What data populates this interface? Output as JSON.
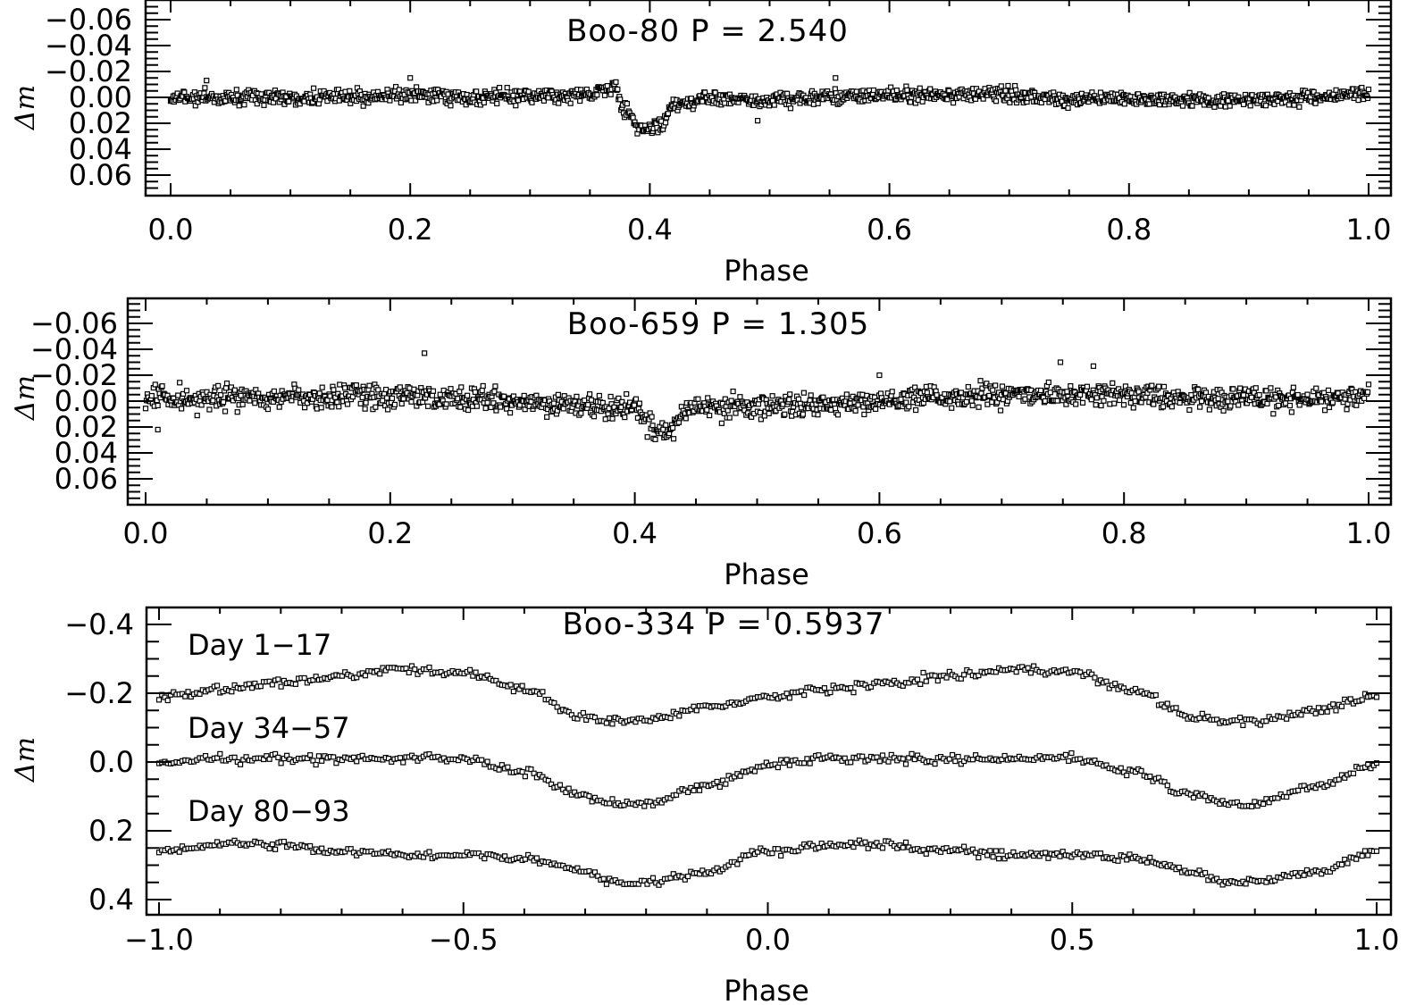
{
  "chart_data": [
    {
      "type": "scatter",
      "title": "Boo-80   P = 2.540",
      "star": "Boo-80",
      "period": "2.540",
      "xlabel": "Phase",
      "ylabel": "Δm",
      "xlim": [
        0.0,
        1.0
      ],
      "ylim": [
        -0.075,
        0.075
      ],
      "y_inverted": true,
      "xticks": [
        "0.0",
        "0.2",
        "0.4",
        "0.6",
        "0.8",
        "1.0"
      ],
      "yticks": [
        "−0.06",
        "−0.04",
        "−0.02",
        "0.00",
        "0.02",
        "0.04",
        "0.06"
      ],
      "marker": "open-square",
      "baseline": 0.0,
      "features": [
        {
          "type": "eclipse-dip",
          "phase_center": 0.395,
          "phase_width": 0.05,
          "depth": 0.025
        }
      ],
      "outliers": [
        {
          "x": 0.03,
          "y": -0.013
        },
        {
          "x": 0.2,
          "y": -0.015
        },
        {
          "x": 0.49,
          "y": 0.018
        },
        {
          "x": 0.555,
          "y": -0.015
        }
      ],
      "x": [
        0.0,
        0.05,
        0.1,
        0.15,
        0.2,
        0.25,
        0.3,
        0.35,
        0.37,
        0.38,
        0.39,
        0.4,
        0.41,
        0.42,
        0.45,
        0.5,
        0.55,
        0.6,
        0.65,
        0.7,
        0.75,
        0.8,
        0.85,
        0.9,
        0.95,
        1.0
      ],
      "y": [
        0.0,
        0.0,
        0.0,
        0.0,
        -0.002,
        0.0,
        -0.001,
        -0.002,
        -0.008,
        0.01,
        0.022,
        0.025,
        0.02,
        0.005,
        0.0,
        0.002,
        0.0,
        -0.002,
        -0.002,
        -0.002,
        0.002,
        0.001,
        0.002,
        0.002,
        0.0,
        -0.002
      ]
    },
    {
      "type": "scatter",
      "title": "Boo-659   P = 1.305",
      "star": "Boo-659",
      "period": "1.305",
      "xlabel": "Phase",
      "ylabel": "Δm",
      "xlim": [
        0.0,
        1.0
      ],
      "ylim": [
        -0.075,
        0.075
      ],
      "y_inverted": true,
      "xticks": [
        "0.0",
        "0.2",
        "0.4",
        "0.6",
        "0.8",
        "1.0"
      ],
      "yticks": [
        "−0.06",
        "−0.04",
        "−0.02",
        "0.00",
        "0.02",
        "0.04",
        "0.06"
      ],
      "marker": "open-square",
      "baseline": 0.0,
      "features": [
        {
          "type": "eclipse-dip",
          "phase_center": 0.425,
          "phase_width": 0.04,
          "depth": 0.025
        }
      ],
      "outliers": [
        {
          "x": 0.01,
          "y": 0.022
        },
        {
          "x": 0.228,
          "y": -0.037
        },
        {
          "x": 0.748,
          "y": -0.03
        },
        {
          "x": 0.775,
          "y": -0.027
        },
        {
          "x": 0.6,
          "y": -0.02
        }
      ],
      "x": [
        0.0,
        0.05,
        0.1,
        0.15,
        0.2,
        0.25,
        0.3,
        0.35,
        0.4,
        0.41,
        0.42,
        0.43,
        0.44,
        0.45,
        0.5,
        0.55,
        0.6,
        0.65,
        0.7,
        0.75,
        0.8,
        0.85,
        0.9,
        0.95,
        1.0
      ],
      "y": [
        -0.003,
        -0.002,
        -0.003,
        -0.003,
        -0.003,
        -0.002,
        0.0,
        0.002,
        0.006,
        0.015,
        0.025,
        0.02,
        0.008,
        0.004,
        0.005,
        0.003,
        0.0,
        -0.003,
        -0.005,
        -0.005,
        -0.004,
        -0.003,
        -0.002,
        -0.002,
        -0.003
      ]
    },
    {
      "type": "scatter",
      "title": "Boo-334   P = 0.5937",
      "star": "Boo-334",
      "period": "0.5937",
      "xlabel": "Phase",
      "ylabel": "Δm",
      "xlim": [
        -1.0,
        1.0
      ],
      "ylim": [
        -0.45,
        0.45
      ],
      "y_inverted": true,
      "xticks": [
        "−1.0",
        "−0.5",
        "0.0",
        "0.5",
        "1.0"
      ],
      "yticks": [
        "−0.4",
        "−0.2",
        "0.0",
        "0.2",
        "0.4"
      ],
      "marker": "open-square",
      "x": [
        -1.0,
        -0.9,
        -0.8,
        -0.7,
        -0.6,
        -0.5,
        -0.4,
        -0.3,
        -0.25,
        -0.2,
        -0.1,
        0.0,
        0.1,
        0.2,
        0.3,
        0.4,
        0.5,
        0.6,
        0.7,
        0.75,
        0.8,
        0.9,
        1.0
      ],
      "series": [
        {
          "name": "Day 1-17",
          "label": "Day 1−17",
          "y": [
            -0.19,
            -0.21,
            -0.23,
            -0.25,
            -0.27,
            -0.26,
            -0.21,
            -0.13,
            -0.12,
            -0.12,
            -0.16,
            -0.19,
            -0.21,
            -0.23,
            -0.25,
            -0.27,
            -0.26,
            -0.21,
            -0.13,
            -0.12,
            -0.12,
            -0.15,
            -0.19
          ]
        },
        {
          "name": "Day 34-57",
          "label": "Day 34−57",
          "y": [
            0.0,
            -0.01,
            -0.01,
            -0.01,
            -0.01,
            -0.01,
            0.03,
            0.1,
            0.12,
            0.12,
            0.07,
            0.01,
            -0.01,
            -0.01,
            -0.01,
            -0.01,
            -0.01,
            0.03,
            0.1,
            0.12,
            0.12,
            0.07,
            0.01
          ]
        },
        {
          "name": "Day 80-93",
          "label": "Day 80−93",
          "y": [
            0.26,
            0.24,
            0.24,
            0.26,
            0.27,
            0.27,
            0.28,
            0.32,
            0.35,
            0.35,
            0.32,
            0.26,
            0.24,
            0.24,
            0.26,
            0.27,
            0.27,
            0.28,
            0.32,
            0.35,
            0.35,
            0.32,
            0.26
          ]
        }
      ]
    }
  ]
}
